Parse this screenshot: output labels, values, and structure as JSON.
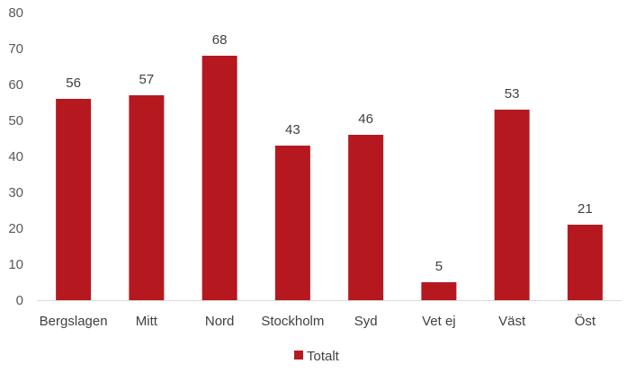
{
  "chart_data": {
    "type": "bar",
    "categories": [
      "Bergslagen",
      "Mitt",
      "Nord",
      "Stockholm",
      "Syd",
      "Vet ej",
      "Väst",
      "Öst"
    ],
    "series": [
      {
        "name": "Totalt",
        "values": [
          56,
          57,
          68,
          43,
          46,
          5,
          53,
          21
        ],
        "color": "#B5191F"
      }
    ],
    "y_ticks": [
      "0",
      "10",
      "20",
      "30",
      "40",
      "50",
      "60",
      "70",
      "80"
    ],
    "ylim": [
      0,
      80
    ],
    "grid": false,
    "legend_position": "bottom"
  }
}
